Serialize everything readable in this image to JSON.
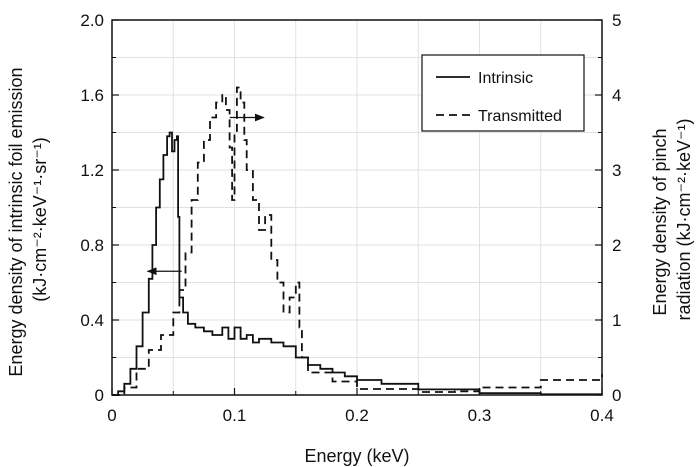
{
  "chart_data": {
    "type": "line",
    "xlabel": "Energy (keV)",
    "ylabel_left": [
      "Energy density of intrinsic foil emission",
      "(kJ·cm⁻²·keV⁻¹·sr⁻¹)"
    ],
    "ylabel_right": [
      "Energy density of pinch",
      "radiation (kJ·cm⁻²·keV⁻¹)"
    ],
    "xlim": [
      0,
      0.4
    ],
    "ylim_left": [
      0,
      2.0
    ],
    "ylim_right": [
      0,
      5
    ],
    "x_ticks": [
      "0",
      "0.1",
      "0.2",
      "0.3",
      "0.4"
    ],
    "y_left_ticks": [
      "0",
      "0.4",
      "0.8",
      "1.2",
      "1.6",
      "2.0"
    ],
    "y_right_ticks": [
      "0",
      "1",
      "2",
      "3",
      "4",
      "5"
    ],
    "grid": true,
    "legend": {
      "position": "top-right"
    },
    "series": [
      {
        "name": "Intrinsic",
        "axis": "left",
        "style": "solid",
        "color": "#111111",
        "points": [
          [
            0,
            0
          ],
          [
            0.005,
            0.02
          ],
          [
            0.01,
            0.06
          ],
          [
            0.015,
            0.14
          ],
          [
            0.02,
            0.26
          ],
          [
            0.025,
            0.44
          ],
          [
            0.03,
            0.62
          ],
          [
            0.033,
            0.8
          ],
          [
            0.036,
            1.0
          ],
          [
            0.039,
            1.15
          ],
          [
            0.042,
            1.28
          ],
          [
            0.045,
            1.38
          ],
          [
            0.047,
            1.4
          ],
          [
            0.049,
            1.3
          ],
          [
            0.051,
            1.36
          ],
          [
            0.053,
            1.38
          ],
          [
            0.054,
            0.95
          ],
          [
            0.055,
            0.52
          ],
          [
            0.058,
            0.44
          ],
          [
            0.062,
            0.38
          ],
          [
            0.068,
            0.36
          ],
          [
            0.075,
            0.34
          ],
          [
            0.082,
            0.32
          ],
          [
            0.09,
            0.36
          ],
          [
            0.095,
            0.3
          ],
          [
            0.1,
            0.36
          ],
          [
            0.105,
            0.3
          ],
          [
            0.11,
            0.32
          ],
          [
            0.115,
            0.28
          ],
          [
            0.12,
            0.3
          ],
          [
            0.13,
            0.28
          ],
          [
            0.14,
            0.26
          ],
          [
            0.15,
            0.2
          ],
          [
            0.16,
            0.16
          ],
          [
            0.17,
            0.14
          ],
          [
            0.18,
            0.12
          ],
          [
            0.19,
            0.1
          ],
          [
            0.2,
            0.08
          ],
          [
            0.22,
            0.06
          ],
          [
            0.25,
            0.03
          ],
          [
            0.3,
            0.01
          ],
          [
            0.35,
            0.004
          ],
          [
            0.4,
            0.002
          ]
        ]
      },
      {
        "name": "Transmitted",
        "axis": "right",
        "style": "dashed",
        "color": "#111111",
        "points": [
          [
            0,
            0
          ],
          [
            0.01,
            0.1
          ],
          [
            0.02,
            0.35
          ],
          [
            0.03,
            0.6
          ],
          [
            0.04,
            0.8
          ],
          [
            0.05,
            1.1
          ],
          [
            0.055,
            1.4
          ],
          [
            0.06,
            1.9
          ],
          [
            0.065,
            2.6
          ],
          [
            0.07,
            3.1
          ],
          [
            0.075,
            3.4
          ],
          [
            0.08,
            3.7
          ],
          [
            0.085,
            3.9
          ],
          [
            0.09,
            4.0
          ],
          [
            0.093,
            3.8
          ],
          [
            0.096,
            3.3
          ],
          [
            0.098,
            2.6
          ],
          [
            0.1,
            3.5
          ],
          [
            0.102,
            4.1
          ],
          [
            0.105,
            3.9
          ],
          [
            0.108,
            3.4
          ],
          [
            0.11,
            3.0
          ],
          [
            0.115,
            2.6
          ],
          [
            0.12,
            2.2
          ],
          [
            0.125,
            2.4
          ],
          [
            0.13,
            1.8
          ],
          [
            0.135,
            1.5
          ],
          [
            0.14,
            1.1
          ],
          [
            0.145,
            1.3
          ],
          [
            0.15,
            1.5
          ],
          [
            0.153,
            0.9
          ],
          [
            0.155,
            0.5
          ],
          [
            0.16,
            0.3
          ],
          [
            0.18,
            0.18
          ],
          [
            0.2,
            0.08
          ],
          [
            0.25,
            0.04
          ],
          [
            0.28,
            0.05
          ],
          [
            0.3,
            0.1
          ],
          [
            0.35,
            0.2
          ],
          [
            0.4,
            0.28
          ]
        ]
      }
    ],
    "annotations": [
      {
        "type": "arrow",
        "direction": "left",
        "target_axis": "left",
        "x": 0.043,
        "y": 0.66
      },
      {
        "type": "arrow",
        "direction": "right",
        "target_axis": "right",
        "x": 0.11,
        "y": 3.7
      }
    ]
  }
}
